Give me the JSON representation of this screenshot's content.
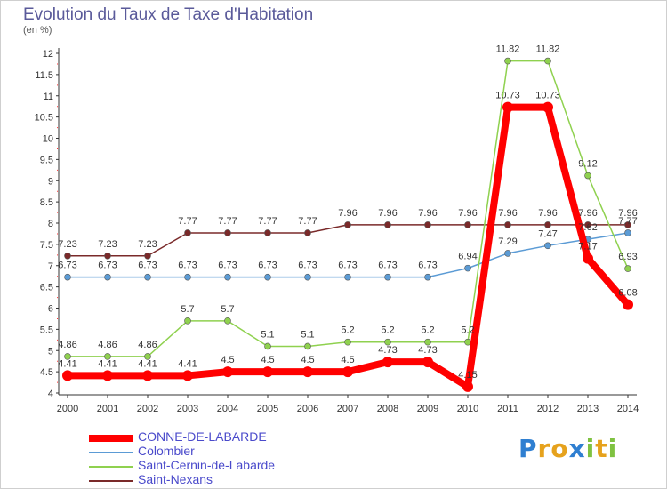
{
  "title": "Evolution du Taux de Taxe d'Habitation",
  "unit": "(en %)",
  "logo": {
    "text": "Proxiti",
    "letters": [
      "P",
      "r",
      "o",
      "x",
      "i",
      "t",
      "i"
    ],
    "colors": [
      "#2f7fd1",
      "#e6a21d",
      "#e6a21d",
      "#2f7fd1",
      "#7fc241",
      "#e6a21d",
      "#7fc241"
    ]
  },
  "chart_data": {
    "type": "line",
    "x": [
      "2000",
      "2001",
      "2002",
      "2003",
      "2004",
      "2005",
      "2006",
      "2007",
      "2008",
      "2009",
      "2010",
      "2011",
      "2012",
      "2013",
      "2014"
    ],
    "ylim": [
      4,
      12
    ],
    "yticks": [
      "4",
      "4.5",
      "5",
      "5.5",
      "6",
      "6.5",
      "7",
      "7.5",
      "8",
      "8.5",
      "9",
      "9.5",
      "10",
      "10.5",
      "11",
      "11.5",
      "12"
    ],
    "grid": false,
    "legend": "bottom-left",
    "series": [
      {
        "name": "CONNE-DE-LABARDE",
        "color": "#ff0000",
        "values": [
          4.41,
          4.41,
          4.41,
          4.41,
          4.5,
          4.5,
          4.5,
          4.5,
          4.73,
          4.73,
          4.15,
          10.73,
          10.73,
          7.17,
          6.08
        ],
        "labels": [
          "4.41",
          "4.41",
          "4.41",
          "4.41",
          "4.5",
          "4.5",
          "4.5",
          "4.5",
          "4.73",
          "4.73",
          "4.15",
          "10.73",
          "10.73",
          "7.17",
          "6.08"
        ]
      },
      {
        "name": "Colombier",
        "color": "#5b9bd5",
        "values": [
          6.73,
          6.73,
          6.73,
          6.73,
          6.73,
          6.73,
          6.73,
          6.73,
          6.73,
          6.73,
          6.94,
          7.29,
          7.47,
          7.62,
          7.77
        ],
        "labels": [
          "6.73",
          "6.73",
          "6.73",
          "6.73",
          "6.73",
          "6.73",
          "6.73",
          "6.73",
          "6.73",
          "6.73",
          "6.94",
          "7.29",
          "7.47",
          "7.62",
          "7.77"
        ]
      },
      {
        "name": "Saint-Cernin-de-Labarde",
        "color": "#8fd14f",
        "values": [
          4.86,
          4.86,
          4.86,
          5.7,
          5.7,
          5.1,
          5.1,
          5.2,
          5.2,
          5.2,
          5.2,
          11.82,
          11.82,
          9.12,
          6.93
        ],
        "labels": [
          "4.86",
          "4.86",
          "4.86",
          "5.7",
          "5.7",
          "5.1",
          "5.1",
          "5.2",
          "5.2",
          "5.2",
          "5.2",
          "11.82",
          "11.82",
          "9.12",
          "6.93"
        ]
      },
      {
        "name": "Saint-Nexans",
        "color": "#7a2a2a",
        "values": [
          7.23,
          7.23,
          7.23,
          7.77,
          7.77,
          7.77,
          7.77,
          7.96,
          7.96,
          7.96,
          7.96,
          7.96,
          7.96,
          7.96,
          7.96
        ],
        "labels": [
          "7.23",
          "7.23",
          "7.23",
          "7.77",
          "7.77",
          "7.77",
          "7.77",
          "7.96",
          "7.96",
          "7.96",
          "7.96",
          "7.96",
          "7.96",
          "7.96",
          "7.96"
        ]
      }
    ]
  }
}
